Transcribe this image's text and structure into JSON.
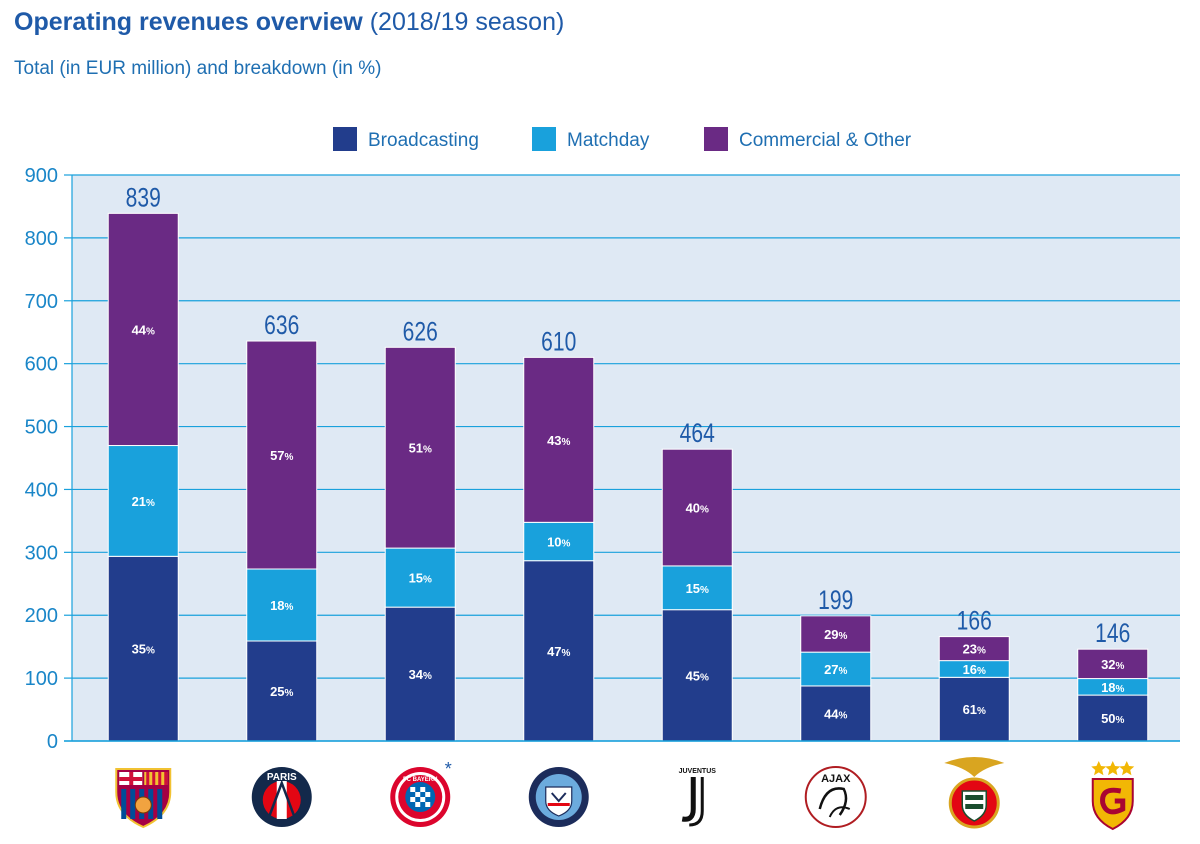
{
  "header": {
    "title_bold": "Operating revenues overview",
    "title_light": "(2018/19 season)",
    "subtitle": "Total (in EUR million) and breakdown (in %)"
  },
  "colors": {
    "broadcasting": "#223d8c",
    "matchday": "#19a1dc",
    "commercial": "#6a2a84",
    "plot_bg": "#dfe9f4",
    "grid": "#19a1dc"
  },
  "chart_data": {
    "type": "bar",
    "stacked": true,
    "title": "Operating revenues overview (2018/19 season)",
    "subtitle": "Total (in EUR million) and breakdown (in %)",
    "categories": [
      "FC Barcelona",
      "Paris Saint-Germain",
      "FC Bayern München",
      "Manchester City",
      "Juventus",
      "Ajax",
      "Benfica",
      "Galatasaray"
    ],
    "totals": [
      839,
      636,
      626,
      610,
      464,
      199,
      166,
      146
    ],
    "series": [
      {
        "name": "Broadcasting",
        "percent": [
          35,
          25,
          34,
          47,
          45,
          44,
          61,
          50
        ]
      },
      {
        "name": "Matchday",
        "percent": [
          21,
          18,
          15,
          10,
          15,
          27,
          16,
          18
        ]
      },
      {
        "name": "Commercial & Other",
        "percent": [
          44,
          57,
          51,
          43,
          40,
          29,
          23,
          32
        ]
      }
    ],
    "ylim": [
      0,
      900
    ],
    "yticks": [
      0,
      100,
      200,
      300,
      400,
      500,
      600,
      700,
      800,
      900
    ],
    "grid": true,
    "legend_position": "top"
  },
  "footnote_marker": "*",
  "logo_texts": {
    "psg": "PARIS",
    "bayern": "FC BAYERN",
    "juventus": "JUVENTUS",
    "ajax": "AJAX"
  },
  "icons": [
    "barcelona-crest-icon",
    "psg-crest-icon",
    "bayern-crest-icon",
    "man-city-crest-icon",
    "juventus-logo-icon",
    "ajax-crest-icon",
    "benfica-crest-icon",
    "galatasaray-crest-icon"
  ]
}
